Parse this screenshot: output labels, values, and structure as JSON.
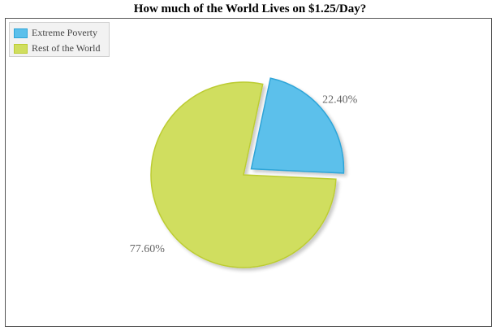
{
  "chart_data": {
    "type": "pie",
    "title": "How much of the World Lives on $1.25/Day?",
    "categories": [
      "Extreme Poverty",
      "Rest of the World"
    ],
    "values": [
      22.4,
      77.6
    ],
    "data_labels": [
      "22.40%",
      "77.60%"
    ],
    "colors": [
      "#5bc0eb",
      "#d0de5e"
    ],
    "border_colors": [
      "#2fa5d8",
      "#bccc33"
    ],
    "exploded": [
      true,
      false
    ],
    "legend": {
      "placement": "top-left",
      "entries": [
        "Extreme Poverty",
        "Rest of the World"
      ]
    }
  }
}
